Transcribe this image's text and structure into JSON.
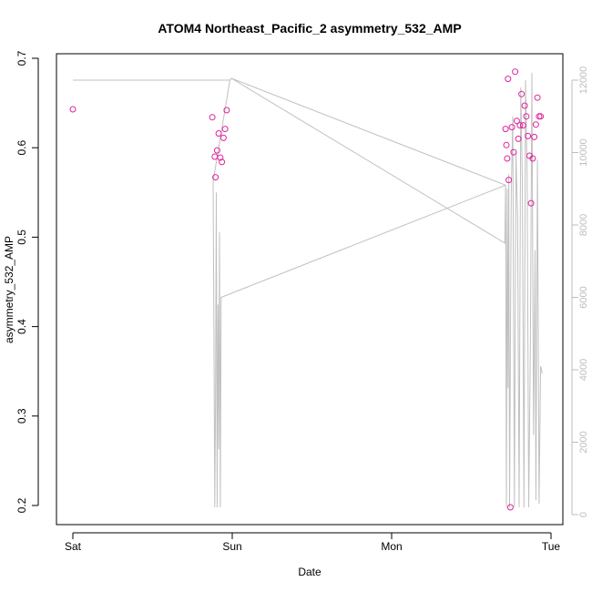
{
  "chart_data": {
    "type": "scatter",
    "title": "ATOM4 Northeast_Pacific_2 asymmetry_532_AMP",
    "xlabel": "Date",
    "ylabel": "asymmetry_532_AMP",
    "x_ticks": [
      "Sat",
      "Sun",
      "Mon",
      "Tue"
    ],
    "x_range_days": [
      0,
      3
    ],
    "y_range": [
      0.18,
      0.7
    ],
    "y_ticks": [
      "0.2",
      "0.3",
      "0.4",
      "0.5",
      "0.6",
      "0.7"
    ],
    "y_right_range": [
      -300,
      12700
    ],
    "y_right_ticks": [
      "0",
      "2000",
      "4000",
      "6000",
      "8000",
      "10000",
      "12000"
    ],
    "grid": false,
    "series": [
      {
        "kind": "points",
        "color": "#e0229c",
        "x_days": [
          0.0,
          0.875,
          0.89,
          0.895,
          0.905,
          0.915,
          0.925,
          0.935,
          0.945,
          0.955,
          0.965,
          2.715,
          2.72,
          2.725,
          2.73,
          2.735,
          2.745,
          2.755,
          2.765,
          2.775,
          2.785,
          2.795,
          2.805,
          2.815,
          2.825,
          2.835,
          2.845,
          2.855,
          2.865,
          2.875,
          2.885,
          2.895,
          2.905,
          2.915,
          2.925,
          2.935
        ],
        "values": [
          0.643,
          0.634,
          0.59,
          0.567,
          0.597,
          0.616,
          0.589,
          0.584,
          0.611,
          0.621,
          0.642,
          0.621,
          0.603,
          0.588,
          0.677,
          0.564,
          0.198,
          0.623,
          0.595,
          0.685,
          0.63,
          0.61,
          0.625,
          0.66,
          0.625,
          0.647,
          0.635,
          0.613,
          0.591,
          0.538,
          0.588,
          0.612,
          0.626,
          0.656,
          0.635,
          0.635
        ]
      },
      {
        "kind": "line",
        "color": "#c0c0c0",
        "axis": "right",
        "x_days": [
          0.0,
          0.985,
          0.995,
          2.71,
          2.715,
          0.995,
          0.985,
          0.88,
          0.885,
          0.89,
          0.895,
          0.9,
          0.905,
          0.91,
          0.915,
          0.92,
          0.925,
          0.93,
          2.715,
          2.72,
          2.725,
          2.73,
          2.735,
          2.74,
          2.75,
          2.76,
          2.77,
          2.78,
          2.79,
          2.8,
          2.81,
          2.82,
          2.83,
          2.84,
          2.85,
          2.86,
          2.87,
          2.88,
          2.89,
          2.9,
          2.905,
          2.915,
          2.925,
          2.935,
          2.945
        ],
        "values": [
          12000,
          12000,
          12050,
          7500,
          9100,
          12050,
          12000,
          9200,
          5000,
          200,
          3000,
          8900,
          200,
          5800,
          1800,
          7800,
          200,
          6000,
          9100,
          200,
          9000,
          3500,
          9400,
          200,
          8800,
          11000,
          200,
          10000,
          8200,
          200,
          11800,
          9200,
          200,
          12000,
          9300,
          200,
          4500,
          12200,
          2200,
          7300,
          400,
          9800,
          300,
          4100,
          3900
        ]
      }
    ]
  }
}
